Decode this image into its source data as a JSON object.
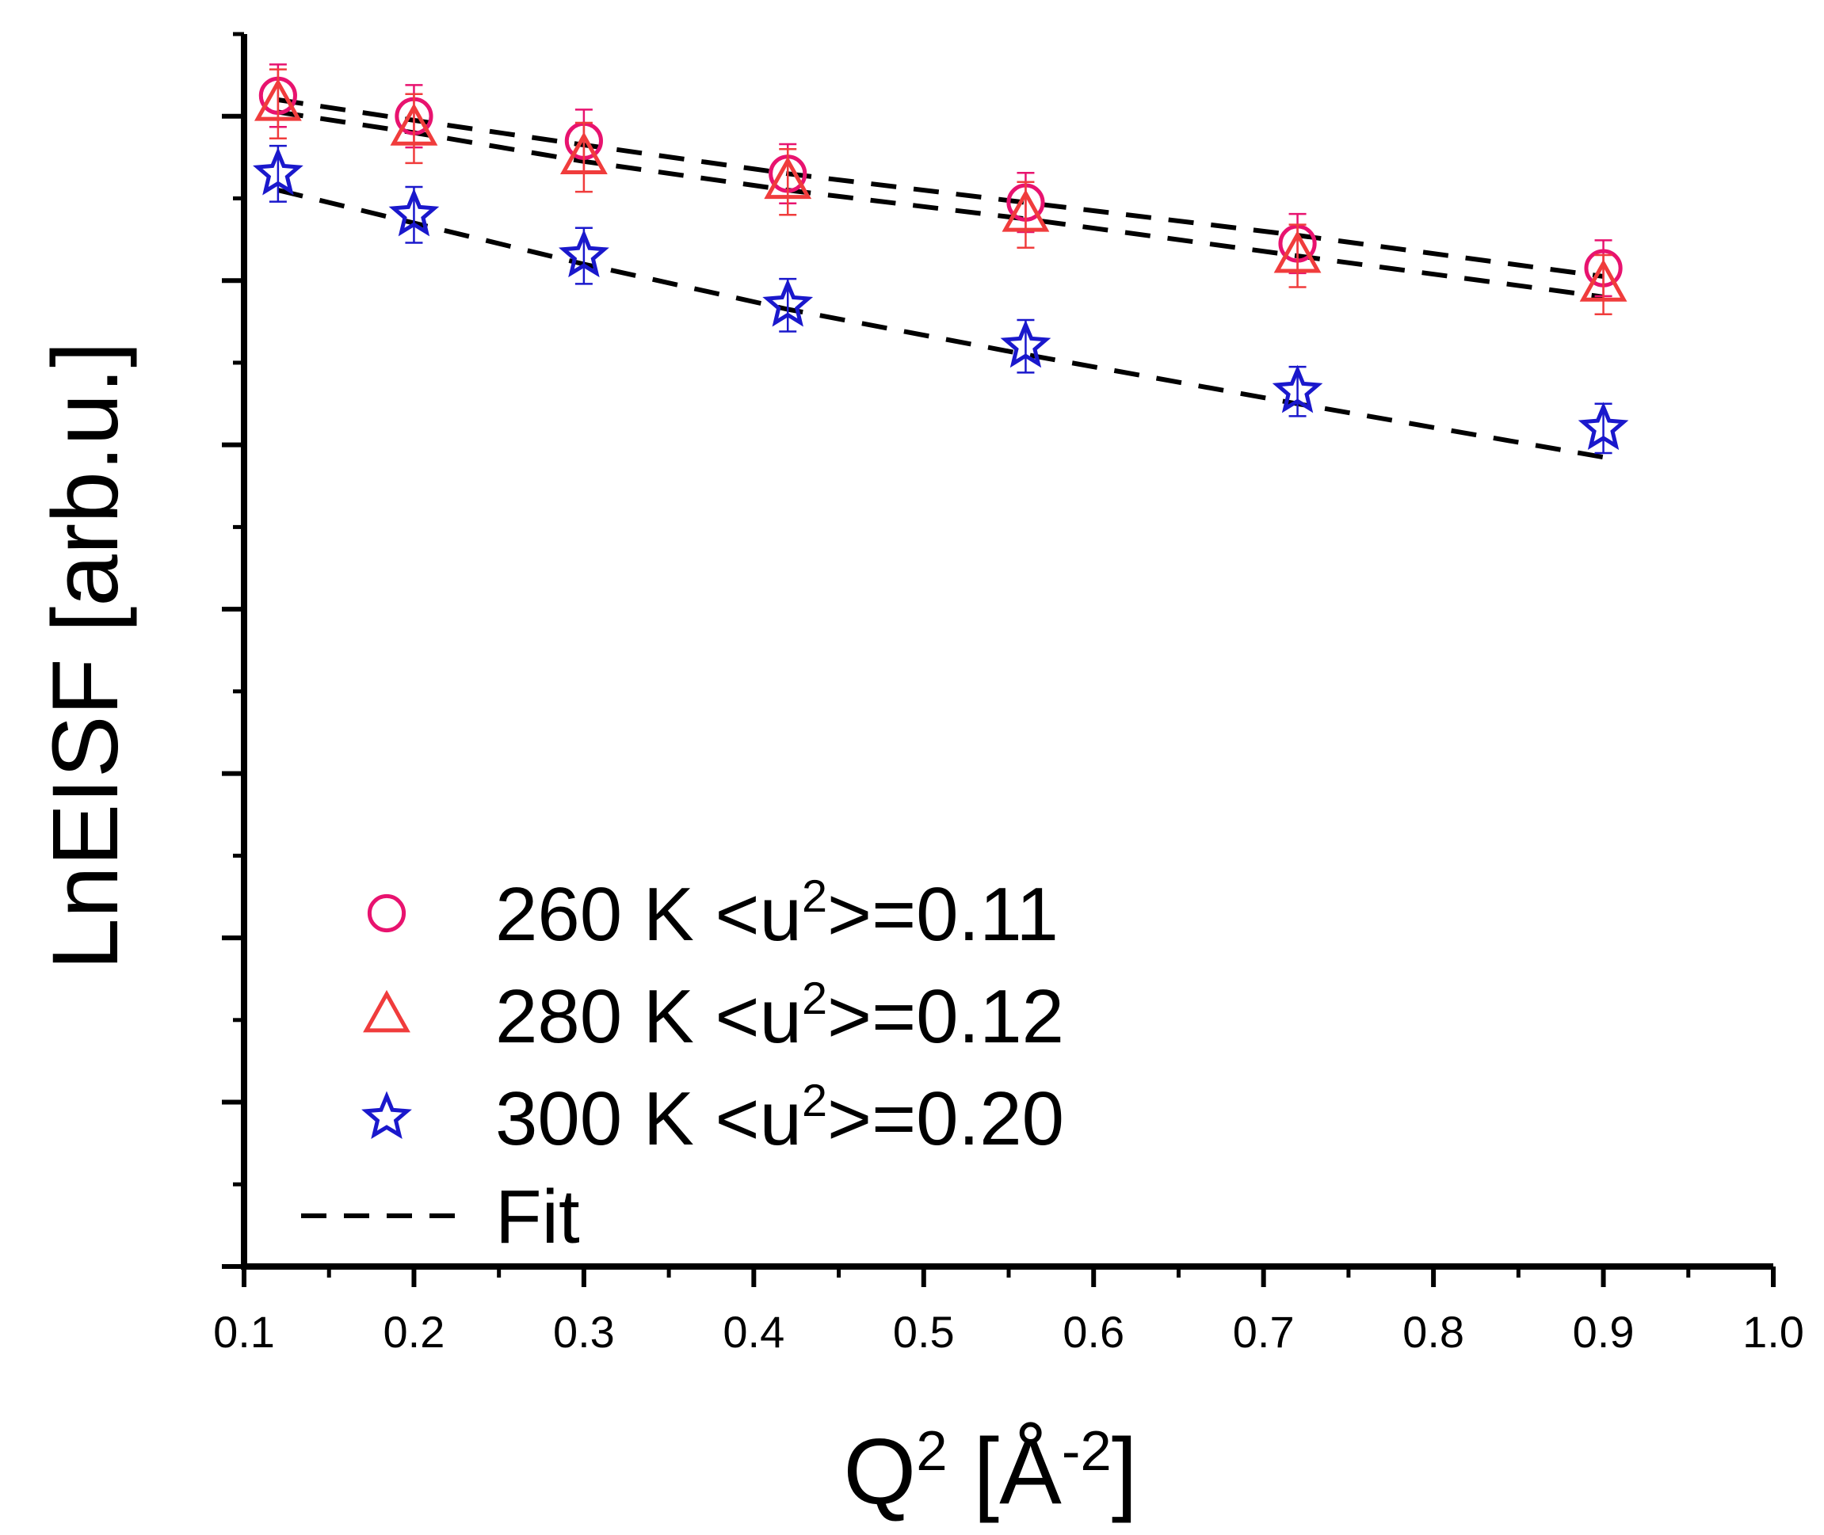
{
  "chart_data": {
    "type": "scatter",
    "title": "",
    "xlabel": {
      "main": "Q",
      "sup": "2",
      "unit_open": " [Å",
      "unit_sup": "-2",
      "unit_close": "]"
    },
    "ylabel": "LnEISF [arb.u.]",
    "xlim": [
      0.1,
      1.0
    ],
    "ylim": [
      0,
      15
    ],
    "x_ticks": [
      "0.1",
      "0.2",
      "0.3",
      "0.4",
      "0.5",
      "0.6",
      "0.7",
      "0.8",
      "0.9",
      "1.0"
    ],
    "y_tick_labels_shown": false,
    "grid": false,
    "legend_position": "bottom-left",
    "x": [
      0.12,
      0.2,
      0.3,
      0.42,
      0.56,
      0.72,
      0.9
    ],
    "series": [
      {
        "name": "260 K",
        "legend_prefix": "260 K <u",
        "legend_sup": "2",
        "legend_suffix": ">=0.11",
        "marker": "circle",
        "color": "#e8136f",
        "values": [
          14.25,
          14.0,
          13.7,
          13.3,
          12.95,
          12.45,
          12.15
        ],
        "errors": [
          0.38,
          0.38,
          0.38,
          0.36,
          0.36,
          0.36,
          0.34
        ],
        "fit": [
          14.2,
          13.95,
          13.65,
          13.3,
          12.95,
          12.55,
          12.05
        ]
      },
      {
        "name": "280 K",
        "legend_prefix": "280 K <u",
        "legend_sup": "2",
        "legend_suffix": ">=0.12",
        "marker": "triangle",
        "color": "#f03c3c",
        "values": [
          14.15,
          13.85,
          13.5,
          13.2,
          12.8,
          12.3,
          11.95
        ],
        "errors": [
          0.42,
          0.42,
          0.42,
          0.4,
          0.4,
          0.38,
          0.36
        ],
        "fit": [
          14.05,
          13.8,
          13.45,
          13.1,
          12.75,
          12.3,
          11.8
        ]
      },
      {
        "name": "300 K",
        "legend_prefix": "300 K <u",
        "legend_sup": "2",
        "legend_suffix": ">=0.20",
        "marker": "star",
        "color": "#1a18cc",
        "values": [
          13.3,
          12.8,
          12.3,
          11.7,
          11.2,
          10.65,
          10.2
        ],
        "errors": [
          0.34,
          0.34,
          0.34,
          0.32,
          0.32,
          0.3,
          0.3
        ],
        "fit": [
          13.1,
          12.7,
          12.2,
          11.65,
          11.1,
          10.5,
          9.85
        ]
      }
    ],
    "fit_legend": "Fit",
    "fit_color": "#000000"
  }
}
